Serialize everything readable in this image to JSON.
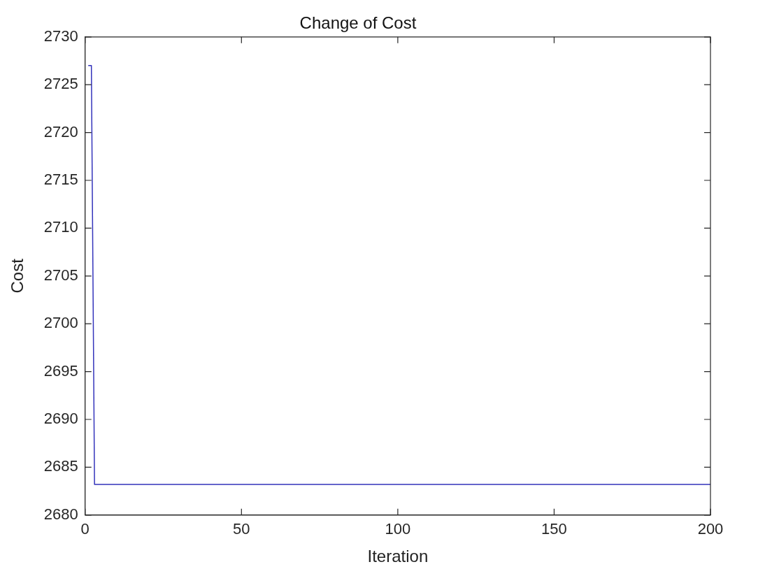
{
  "chart_data": {
    "type": "line",
    "title": "Change of Cost",
    "xlabel": "Iteration",
    "ylabel": "Cost",
    "x": [
      1,
      2,
      3,
      200
    ],
    "series": [
      {
        "color": "#3333bb",
        "values": [
          2727,
          2727,
          2683.2,
          2683.2
        ]
      }
    ],
    "xlim": [
      0,
      200
    ],
    "xticks": [
      0,
      50,
      100,
      150,
      200
    ],
    "ylim": [
      2680,
      2730
    ],
    "yticks": [
      2680,
      2685,
      2690,
      2695,
      2700,
      2705,
      2710,
      2715,
      2720,
      2725,
      2730
    ],
    "grid": false,
    "legend": false,
    "marker": "none",
    "line_style": "solid"
  }
}
